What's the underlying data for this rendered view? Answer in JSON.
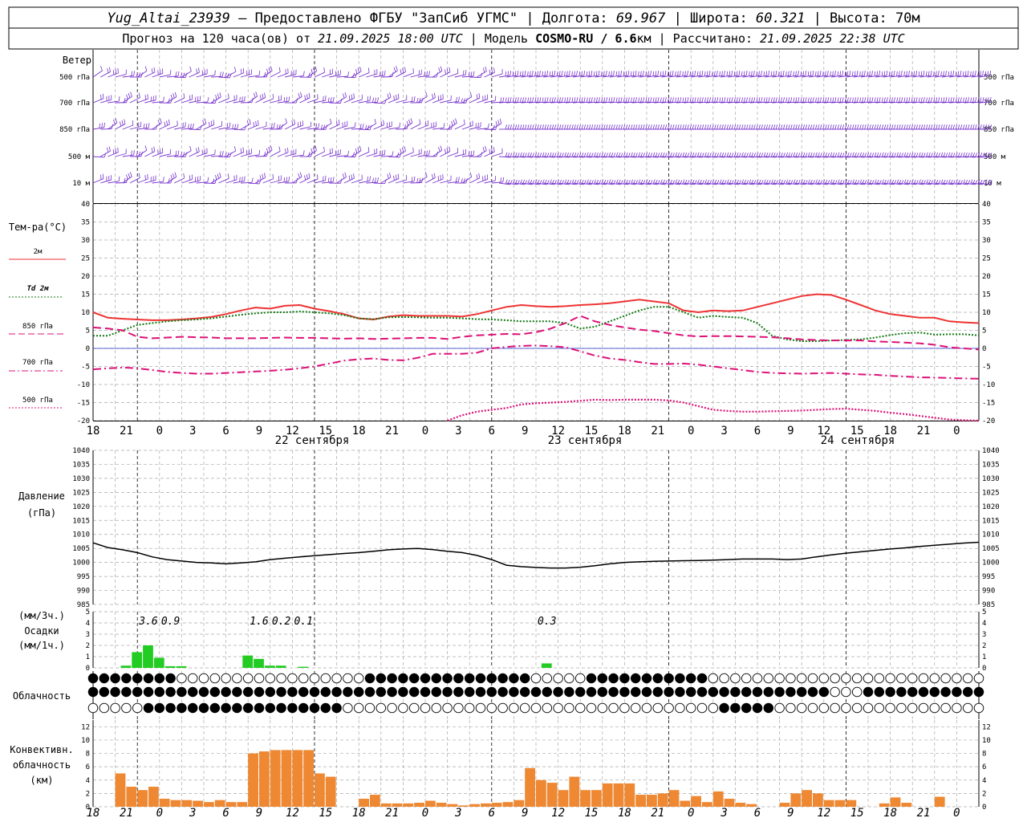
{
  "header": {
    "station": "Yug_Altai_23939",
    "provider": " – Предоставлено ФГБУ \"ЗапСиб УГМС\" | Долгота: ",
    "lon": "69.967",
    "lat_label": " | Широта: ",
    "lat": "60.321",
    "alt_label": " | Высота: ",
    "alt": "70м",
    "line2_a": "Прогноз на 120 часа(ов) от ",
    "init": "21.09.2025 18:00 UTC",
    "line2_b": " | Модель ",
    "model": "COSMO-RU / 6.6",
    "model_unit": "км",
    "line2_c": " | Рассчитано: ",
    "calc": "21.09.2025 22:38 UTC"
  },
  "wind": {
    "title": "Ветер",
    "levels": [
      "500 гПа",
      "700 гПа",
      "850 гПа",
      "500 м",
      "10  м"
    ],
    "right_levels": [
      "500 гПа",
      "700 гПа",
      "850 гПа",
      "500 м",
      "10 м"
    ]
  },
  "temp": {
    "title": "Тем-ра(°C)",
    "legend": [
      "2м",
      "Td  2м",
      "850 гПа",
      "700 гПа",
      "500 гПа"
    ],
    "colors": {
      "t2m": "#ee3333",
      "td2m": "#117711",
      "t850": "#dd1177",
      "t700": "#dd1177",
      "t500": "#dd1177"
    }
  },
  "pressure": {
    "title1": "Давление",
    "title2": "(гПа)"
  },
  "precip": {
    "title1": "(мм/3ч.)",
    "title2": "Осадки",
    "title3": "(мм/1ч.)",
    "color": "#22cc22"
  },
  "cloud": {
    "title": "Облачность"
  },
  "conv": {
    "title1": "Конвективн.",
    "title2": "облачность",
    "title3": "(км)",
    "color": "#ee8833"
  },
  "days": [
    "22 сентября",
    "23 сентября",
    "24 сентября"
  ],
  "hour_ticks": [
    "18",
    "21",
    "0",
    "3",
    "6",
    "9",
    "12",
    "15",
    "18",
    "21",
    "0",
    "3",
    "6",
    "9",
    "12",
    "15",
    "18",
    "21",
    "0",
    "3",
    "6",
    "9",
    "12",
    "15",
    "18",
    "21",
    "0"
  ],
  "chart_data": [
    {
      "type": "line",
      "title": "Тем-ра(°C)",
      "x_hours": [
        0,
        2,
        4,
        6,
        8,
        10,
        12,
        14,
        16,
        18,
        20,
        22,
        24,
        26,
        28,
        30,
        32,
        34,
        36,
        38,
        40,
        42,
        44,
        46,
        48,
        50,
        52,
        54,
        56,
        58,
        60,
        62,
        64,
        66,
        68,
        70,
        72,
        74,
        76,
        78,
        80,
        82,
        84,
        86,
        88,
        90,
        92,
        94,
        96,
        98,
        100,
        102,
        104,
        106,
        108,
        110,
        112,
        114,
        116,
        118,
        120
      ],
      "ylim": [
        -20,
        40
      ],
      "series": [
        {
          "name": "2м",
          "values": [
            10,
            8.5,
            8.2,
            8,
            7.8,
            7.8,
            8,
            8.3,
            8.7,
            9.5,
            10.5,
            11.3,
            11,
            11.8,
            12,
            11,
            10.3,
            9.5,
            8.3,
            8,
            8.8,
            9.2,
            9,
            9,
            9,
            8.8,
            9.5,
            10.5,
            11.5,
            12,
            11.7,
            11.5,
            11.7,
            12,
            12.2,
            12.5,
            13,
            13.5,
            13,
            12.5,
            10.5,
            10,
            10.5,
            10.3,
            10.5,
            11.5,
            12.5,
            13.5,
            14.5,
            15,
            14.8,
            13.5,
            12,
            10.5,
            9.5,
            9,
            8.5,
            8.5,
            7.5,
            7.2,
            7
          ]
        },
        {
          "name": "Td  2м",
          "values": [
            3.5,
            3.5,
            5,
            6.5,
            7,
            7.5,
            7.8,
            8,
            8.3,
            8.8,
            9.3,
            9.7,
            10,
            10,
            10.2,
            10,
            9.7,
            9.2,
            8.3,
            8.1,
            8.6,
            8.7,
            8.6,
            8.5,
            8.5,
            8.3,
            8.1,
            8,
            7.8,
            7.5,
            7.5,
            7.5,
            7,
            5.5,
            6,
            7.5,
            9,
            10.5,
            11.5,
            11.5,
            10,
            8.5,
            9,
            8.7,
            8.5,
            7,
            3.5,
            2.5,
            2,
            2,
            2.2,
            2.3,
            2.5,
            3,
            3.7,
            4.2,
            4.4,
            3.8,
            3.9,
            3.9,
            3.6
          ]
        },
        {
          "name": "850 гПа",
          "values": [
            5.8,
            5.5,
            5,
            3.2,
            2.8,
            3,
            3.2,
            3.1,
            3,
            2.8,
            2.8,
            2.8,
            2.9,
            3,
            2.9,
            2.9,
            2.8,
            2.7,
            2.8,
            2.6,
            2.7,
            2.8,
            2.9,
            2.9,
            2.6,
            3.2,
            3.6,
            3.8,
            4,
            3.9,
            4.5,
            5.5,
            7,
            9,
            7.5,
            6.5,
            5.8,
            5.2,
            4.8,
            4.2,
            3.6,
            3.3,
            3.4,
            3.4,
            3.3,
            3.2,
            3.1,
            2.8,
            2.5,
            2.3,
            2.2,
            2.2,
            2.2,
            1.9,
            1.8,
            1.6,
            1.4,
            1,
            0.3,
            0,
            -0.3
          ]
        },
        {
          "name": "700 гПа",
          "values": [
            -5.8,
            -5.5,
            -5.3,
            -5.5,
            -6,
            -6.5,
            -6.8,
            -7,
            -7,
            -6.8,
            -6.6,
            -6.4,
            -6.2,
            -5.9,
            -5.5,
            -5,
            -4.2,
            -3.4,
            -3,
            -2.8,
            -3.2,
            -3.3,
            -2.6,
            -1.5,
            -1.5,
            -1.5,
            -1.2,
            0,
            0.4,
            0.7,
            0.8,
            0.6,
            0.3,
            -0.8,
            -2,
            -2.8,
            -3.2,
            -3.8,
            -4.3,
            -4.3,
            -4.2,
            -4.5,
            -5,
            -5.5,
            -6,
            -6.5,
            -6.8,
            -6.9,
            -7,
            -6.9,
            -6.8,
            -7,
            -7.2,
            -7.3,
            -7.6,
            -7.8,
            -8,
            -8.1,
            -8.2,
            -8.3,
            -8.4
          ]
        },
        {
          "name": "500 гПа",
          "values": [
            null,
            null,
            null,
            null,
            null,
            null,
            null,
            null,
            null,
            null,
            null,
            null,
            null,
            null,
            null,
            null,
            null,
            null,
            null,
            null,
            null,
            null,
            null,
            null,
            -20.5,
            -18.5,
            -17.5,
            -17,
            -16.5,
            -15.5,
            -15.2,
            -15,
            -14.8,
            -14.5,
            -14.2,
            -14.3,
            -14.2,
            -14.2,
            -14.2,
            -14.4,
            -15,
            -16,
            -17,
            -17.3,
            -17.5,
            -17.5,
            -17.4,
            -17.3,
            -17.2,
            -17,
            -16.8,
            -16.7,
            -17,
            -17.3,
            -17.8,
            -18.2,
            -18.7,
            -19.2,
            -19.7,
            -19.9,
            -20.1
          ]
        }
      ]
    },
    {
      "type": "line",
      "title": "Давление",
      "ylabel": "(гПа)",
      "ylim": [
        985,
        1040
      ],
      "x_hours": [
        0,
        2,
        4,
        6,
        8,
        10,
        12,
        14,
        16,
        18,
        20,
        22,
        24,
        26,
        28,
        30,
        32,
        34,
        36,
        38,
        40,
        42,
        44,
        46,
        48,
        50,
        52,
        54,
        56,
        58,
        60,
        62,
        64,
        66,
        68,
        70,
        72,
        74,
        76,
        78,
        80,
        82,
        84,
        86,
        88,
        90,
        92,
        94,
        96,
        98,
        100,
        102,
        104,
        106,
        108,
        110,
        112,
        114,
        116,
        118,
        120
      ],
      "values": [
        1007,
        1005.3,
        1004.5,
        1003.5,
        1002,
        1001,
        1000.5,
        1000,
        999.8,
        999.5,
        999.8,
        1000.2,
        1001,
        1001.5,
        1002,
        1002.4,
        1002.8,
        1003.2,
        1003.5,
        1004,
        1004.5,
        1004.8,
        1005,
        1004.6,
        1004,
        1003.5,
        1002.5,
        1001,
        999,
        998.5,
        998.2,
        998,
        998,
        998.3,
        998.8,
        999.5,
        1000,
        1000.2,
        1000.4,
        1000.5,
        1000.6,
        1000.7,
        1000.8,
        1001,
        1001.2,
        1001.2,
        1001.2,
        1001,
        1001.2,
        1002,
        1002.7,
        1003.3,
        1003.8,
        1004.3,
        1004.8,
        1005.2,
        1005.7,
        1006.1,
        1006.5,
        1006.9,
        1007.2
      ]
    },
    {
      "type": "bar",
      "title": "Осадки",
      "ylabel": "(мм/1ч.)",
      "ylim": [
        0,
        5
      ],
      "hourly": [
        {
          "h": 4.5,
          "v": 0.2
        },
        {
          "h": 6,
          "v": 1.4
        },
        {
          "h": 7.5,
          "v": 2.0
        },
        {
          "h": 9,
          "v": 0.9
        },
        {
          "h": 10.5,
          "v": 0.15
        },
        {
          "h": 12,
          "v": 0.15
        },
        {
          "h": 21,
          "v": 1.1
        },
        {
          "h": 22.5,
          "v": 0.8
        },
        {
          "h": 24,
          "v": 0.2
        },
        {
          "h": 25.5,
          "v": 0.2
        },
        {
          "h": 28.5,
          "v": 0.1
        },
        {
          "h": 61.5,
          "v": 0.4
        }
      ],
      "totals_3h": [
        {
          "h": 7.5,
          "label": "3.6"
        },
        {
          "h": 10.5,
          "label": "0.9"
        },
        {
          "h": 22.5,
          "label": "1.6"
        },
        {
          "h": 25.5,
          "label": "0.2"
        },
        {
          "h": 28.5,
          "label": "0.1"
        },
        {
          "h": 61.5,
          "label": "0.3"
        }
      ]
    },
    {
      "type": "bar",
      "title": "Конвективн. облачность",
      "ylabel": "(км)",
      "ylim": [
        0,
        13
      ],
      "bars": [
        [
          3,
          4.5,
          5
        ],
        [
          4.5,
          6,
          3
        ],
        [
          6,
          7.5,
          2.5
        ],
        [
          7.5,
          9,
          3
        ],
        [
          9,
          10.5,
          1.2
        ],
        [
          10.5,
          12,
          1
        ],
        [
          12,
          13.5,
          1
        ],
        [
          13.5,
          15,
          0.9
        ],
        [
          15,
          16.5,
          0.7
        ],
        [
          16.5,
          18,
          1
        ],
        [
          18,
          19.5,
          0.7
        ],
        [
          19.5,
          21,
          0.7
        ],
        [
          21,
          22.5,
          8
        ],
        [
          22.5,
          24,
          8.3
        ],
        [
          24,
          25.5,
          8.5
        ],
        [
          25.5,
          27,
          8.5
        ],
        [
          27,
          28.5,
          8.5
        ],
        [
          28.5,
          30,
          8.5
        ],
        [
          30,
          31.5,
          5
        ],
        [
          31.5,
          33,
          4.5
        ],
        [
          36,
          37.5,
          1.2
        ],
        [
          37.5,
          39,
          1.8
        ],
        [
          39,
          40.5,
          0.5
        ],
        [
          40.5,
          42,
          0.5
        ],
        [
          42,
          43.5,
          0.5
        ],
        [
          43.5,
          45,
          0.6
        ],
        [
          45,
          46.5,
          0.9
        ],
        [
          46.5,
          48,
          0.6
        ],
        [
          48,
          49.5,
          0.4
        ],
        [
          49.5,
          51,
          0.2
        ],
        [
          51,
          52.5,
          0.4
        ],
        [
          52.5,
          54,
          0.5
        ],
        [
          54,
          55.5,
          0.6
        ],
        [
          55.5,
          57,
          0.7
        ],
        [
          57,
          58.5,
          1
        ],
        [
          58.5,
          60,
          5.8
        ],
        [
          60,
          61.5,
          4
        ],
        [
          61.5,
          63,
          3.6
        ],
        [
          63,
          64.5,
          2.5
        ],
        [
          64.5,
          66,
          4.5
        ],
        [
          66,
          67.5,
          2.5
        ],
        [
          67.5,
          69,
          2.5
        ],
        [
          69,
          70.5,
          3.5
        ],
        [
          70.5,
          72,
          3.5
        ],
        [
          72,
          73.5,
          3.5
        ],
        [
          73.5,
          75,
          1.8
        ],
        [
          75,
          76.5,
          1.8
        ],
        [
          76.5,
          78,
          2
        ],
        [
          78,
          79.5,
          2.5
        ],
        [
          79.5,
          81,
          0.9
        ],
        [
          81,
          82.5,
          1.6
        ],
        [
          82.5,
          84,
          0.7
        ],
        [
          84,
          85.5,
          2.3
        ],
        [
          85.5,
          87,
          1.2
        ],
        [
          87,
          88.5,
          0.6
        ],
        [
          88.5,
          90,
          0.4
        ],
        [
          93,
          94.5,
          0.6
        ],
        [
          94.5,
          96,
          2
        ],
        [
          96,
          97.5,
          2.5
        ],
        [
          97.5,
          99,
          2
        ],
        [
          99,
          100.5,
          1
        ],
        [
          100.5,
          102,
          1
        ],
        [
          102,
          103.5,
          1
        ],
        [
          106.5,
          108,
          0.5
        ],
        [
          108,
          109.5,
          1.4
        ],
        [
          109.5,
          111,
          0.6
        ],
        [
          114,
          115.5,
          1.5
        ]
      ]
    }
  ]
}
